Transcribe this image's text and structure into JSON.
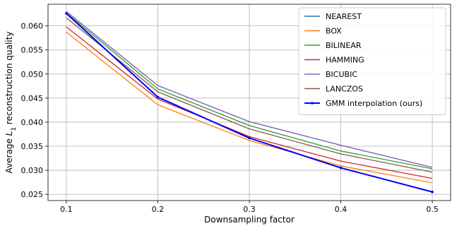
{
  "chart_data": {
    "type": "line",
    "xlabel": "Downsampling factor",
    "ylabel_main": "Average ",
    "ylabel_sym": "L",
    "ylabel_sub": "1",
    "ylabel_rest": " reconstruction quality",
    "x": [
      0.1,
      0.2,
      0.3,
      0.4,
      0.5
    ],
    "xlim": [
      0.08,
      0.52
    ],
    "ylim": [
      0.0237,
      0.0645
    ],
    "xticks": [
      "0.1",
      "0.2",
      "0.3",
      "0.4",
      "0.5"
    ],
    "yticks": [
      "0.025",
      "0.030",
      "0.035",
      "0.040",
      "0.045",
      "0.050",
      "0.055",
      "0.060"
    ],
    "grid": true,
    "legend_position": "top-right",
    "series": [
      {
        "name": "NEAREST",
        "color": "#1f77b4",
        "values": [
          0.063,
          0.0476,
          0.0401,
          0.0352,
          0.0306
        ]
      },
      {
        "name": "BOX",
        "color": "#ff7f0e",
        "values": [
          0.0587,
          0.0436,
          0.0362,
          0.0309,
          0.0274
        ]
      },
      {
        "name": "BILINEAR",
        "color": "#2ca02c",
        "values": [
          0.0627,
          0.0469,
          0.0393,
          0.034,
          0.0303
        ]
      },
      {
        "name": "HAMMING",
        "color": "#d62728",
        "values": [
          0.0598,
          0.0448,
          0.037,
          0.0319,
          0.0283
        ]
      },
      {
        "name": "BICUBIC",
        "color": "#9467bd",
        "values": [
          0.063,
          0.0476,
          0.0401,
          0.0352,
          0.0306
        ]
      },
      {
        "name": "LANCZOS",
        "color": "#8c564b",
        "values": [
          0.0617,
          0.0463,
          0.0386,
          0.0334,
          0.0296
        ]
      },
      {
        "name": "GMM interpolation (ours)",
        "color": "#0000ff",
        "values": [
          0.0626,
          0.0452,
          0.0367,
          0.0305,
          0.0255
        ],
        "marker": true,
        "bold": true
      }
    ]
  }
}
